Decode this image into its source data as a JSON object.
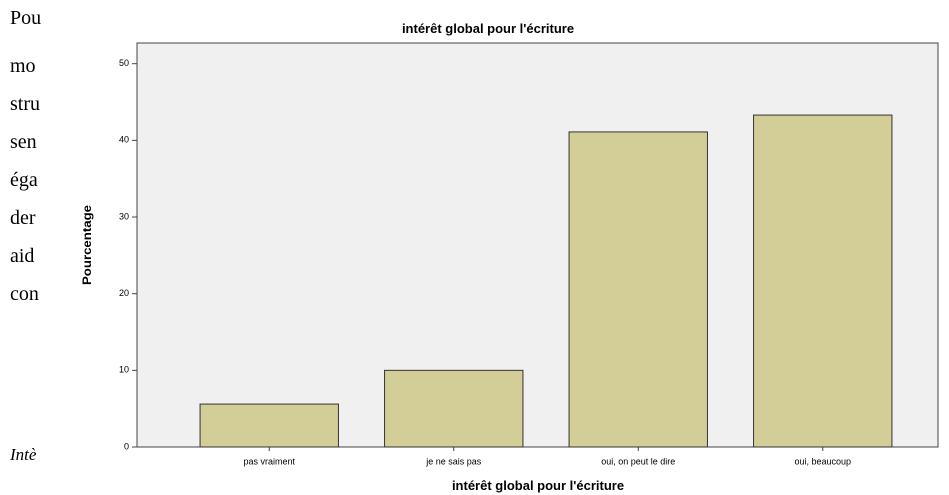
{
  "page_text": [
    "Pou",
    "mo",
    "stru",
    "sen",
    "éga",
    "der",
    "aid",
    "con"
  ],
  "caption": "Intè",
  "chart_data": {
    "type": "bar",
    "title": "intérêt global pour l'écriture",
    "x_label": "intérêt global pour l'écriture",
    "y_label": "Pourcentage",
    "categories": [
      "pas vraiment",
      "je ne sais pas",
      "oui, on peut le dire",
      "oui, beaucoup"
    ],
    "values": [
      5.6,
      10,
      41.1,
      43.3
    ],
    "color": "#d3cd97",
    "ylim": [
      0,
      52.7
    ],
    "yticks": [
      0,
      10,
      20,
      30,
      40,
      50
    ],
    "grid": false
  }
}
